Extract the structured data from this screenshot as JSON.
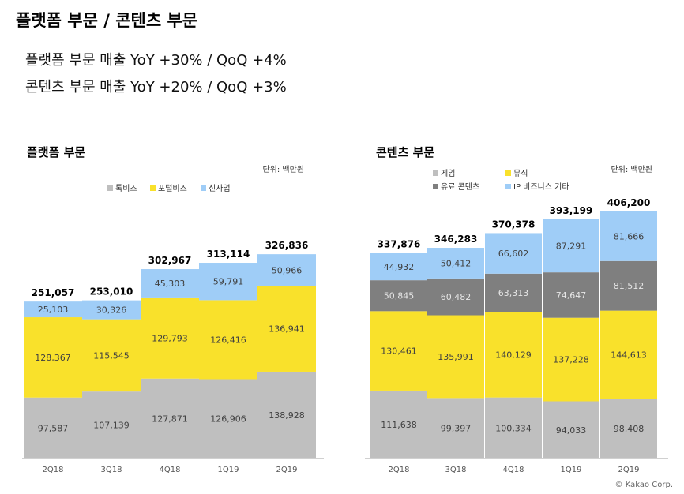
{
  "page": {
    "title": "플랫폼 부문  /  콘텐츠 부문",
    "lines": [
      "플랫폼 부문 매출  YoY +30% / QoQ +4%",
      "콘텐츠 부문 매출  YoY +20% / QoQ +3%"
    ],
    "copyright": "© Kakao Corp."
  },
  "chart_data": [
    {
      "type": "bar",
      "stacked": true,
      "title": "플랫폼 부문",
      "unit": "단위: 백만원",
      "legend_position": "top",
      "categories": [
        "2Q18",
        "3Q18",
        "4Q18",
        "1Q19",
        "2Q19"
      ],
      "series": [
        {
          "name": "톡비즈",
          "color": "#bfbfbf",
          "values": [
            97587,
            107139,
            127871,
            126906,
            138928
          ]
        },
        {
          "name": "포털비즈",
          "color": "#f9e12b",
          "values": [
            128367,
            115545,
            129793,
            126416,
            136941
          ]
        },
        {
          "name": "신사업",
          "color": "#9fcdf7",
          "values": [
            25103,
            30326,
            45303,
            59791,
            50966
          ]
        }
      ],
      "totals": [
        251057,
        253010,
        302967,
        313114,
        326836
      ],
      "grid": false
    },
    {
      "type": "bar",
      "stacked": true,
      "title": "콘텐츠 부문",
      "unit": "단위: 백만원",
      "legend_position": "top",
      "categories": [
        "2Q18",
        "3Q18",
        "4Q18",
        "1Q19",
        "2Q19"
      ],
      "series": [
        {
          "name": "게임",
          "color": "#bfbfbf",
          "values": [
            111638,
            99397,
            100334,
            94033,
            98408
          ]
        },
        {
          "name": "뮤직",
          "color": "#f9e12b",
          "values": [
            130461,
            135991,
            140129,
            137228,
            144613
          ]
        },
        {
          "name": "유료 콘텐츠",
          "color": "#7f7f7f",
          "values": [
            50845,
            60482,
            63313,
            74647,
            81512
          ]
        },
        {
          "name": "IP 비즈니스 기타",
          "color": "#9fcdf7",
          "values": [
            44932,
            50412,
            66602,
            87291,
            81666
          ]
        }
      ],
      "totals": [
        337876,
        346283,
        370378,
        393199,
        406200
      ],
      "grid": false
    }
  ]
}
